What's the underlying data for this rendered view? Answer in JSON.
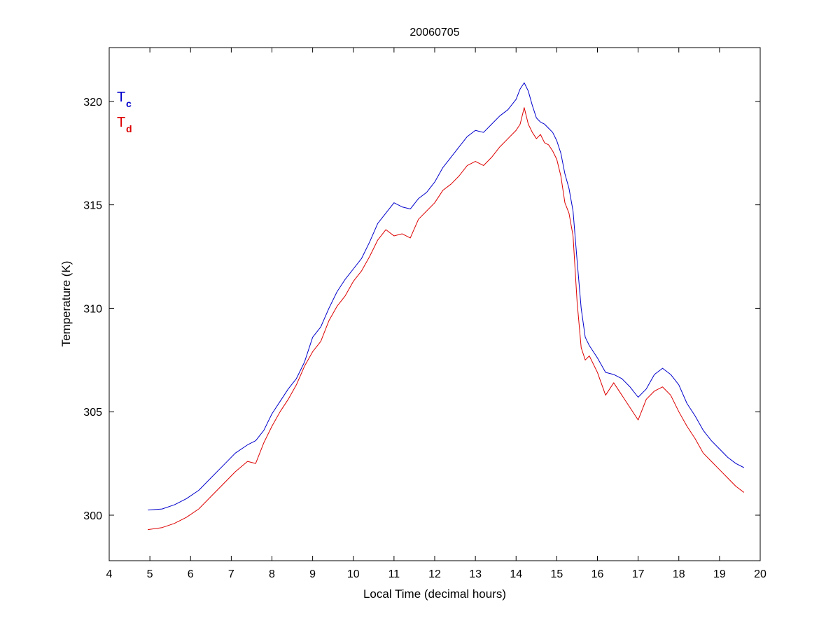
{
  "chart_data": {
    "type": "line",
    "title": "20060705",
    "xlabel": "Local Time (decimal hours)",
    "ylabel": "Temperature (K)",
    "xlim": [
      4,
      20
    ],
    "ylim": [
      297.8,
      322.6
    ],
    "xticks": [
      4,
      5,
      6,
      7,
      8,
      9,
      10,
      11,
      12,
      13,
      14,
      15,
      16,
      17,
      18,
      19,
      20
    ],
    "yticks": [
      300,
      305,
      310,
      315,
      320
    ],
    "grid": false,
    "legend": {
      "placement": "top-left"
    },
    "series": [
      {
        "name": "Tc",
        "label_main": "T",
        "label_sub": "c",
        "color": "#0000cc",
        "x": [
          4.95,
          5.3,
          5.6,
          5.9,
          6.2,
          6.5,
          6.8,
          7.1,
          7.4,
          7.6,
          7.8,
          8.0,
          8.2,
          8.4,
          8.6,
          8.8,
          9.0,
          9.2,
          9.4,
          9.6,
          9.8,
          10.0,
          10.2,
          10.4,
          10.6,
          10.8,
          11.0,
          11.2,
          11.4,
          11.6,
          11.8,
          12.0,
          12.2,
          12.4,
          12.6,
          12.8,
          13.0,
          13.2,
          13.4,
          13.6,
          13.8,
          14.0,
          14.1,
          14.2,
          14.3,
          14.4,
          14.5,
          14.6,
          14.7,
          14.8,
          14.9,
          15.0,
          15.1,
          15.2,
          15.3,
          15.4,
          15.5,
          15.6,
          15.7,
          15.8,
          16.0,
          16.2,
          16.4,
          16.6,
          16.8,
          17.0,
          17.2,
          17.4,
          17.6,
          17.8,
          18.0,
          18.2,
          18.4,
          18.6,
          18.8,
          19.0,
          19.2,
          19.4,
          19.6
        ],
        "values": [
          300.25,
          300.3,
          300.5,
          300.8,
          301.2,
          301.8,
          302.4,
          303.0,
          303.4,
          303.6,
          304.1,
          304.9,
          305.5,
          306.1,
          306.6,
          307.4,
          308.6,
          309.1,
          310.0,
          310.8,
          311.4,
          311.9,
          312.4,
          313.2,
          314.1,
          314.6,
          315.1,
          314.9,
          314.8,
          315.3,
          315.6,
          316.1,
          316.8,
          317.3,
          317.8,
          318.3,
          318.6,
          318.5,
          318.9,
          319.3,
          319.6,
          320.1,
          320.6,
          320.9,
          320.5,
          319.8,
          319.2,
          319.0,
          318.9,
          318.7,
          318.5,
          318.1,
          317.5,
          316.5,
          315.8,
          314.7,
          312.3,
          310.0,
          308.6,
          308.2,
          307.6,
          306.9,
          306.8,
          306.6,
          306.2,
          305.7,
          306.1,
          306.8,
          307.1,
          306.8,
          306.3,
          305.4,
          304.8,
          304.1,
          303.6,
          303.2,
          302.8,
          302.5,
          302.3
        ]
      },
      {
        "name": "Td",
        "label_main": "T",
        "label_sub": "d",
        "color": "#dd0000",
        "x": [
          4.95,
          5.3,
          5.6,
          5.9,
          6.2,
          6.5,
          6.8,
          7.1,
          7.4,
          7.6,
          7.8,
          8.0,
          8.2,
          8.4,
          8.6,
          8.8,
          9.0,
          9.2,
          9.4,
          9.6,
          9.8,
          10.0,
          10.2,
          10.4,
          10.6,
          10.8,
          11.0,
          11.2,
          11.4,
          11.6,
          11.8,
          12.0,
          12.2,
          12.4,
          12.6,
          12.8,
          13.0,
          13.2,
          13.4,
          13.6,
          13.8,
          14.0,
          14.1,
          14.2,
          14.3,
          14.4,
          14.5,
          14.6,
          14.7,
          14.8,
          14.9,
          15.0,
          15.1,
          15.2,
          15.3,
          15.4,
          15.5,
          15.6,
          15.7,
          15.8,
          16.0,
          16.2,
          16.4,
          16.6,
          16.8,
          17.0,
          17.2,
          17.4,
          17.6,
          17.8,
          18.0,
          18.2,
          18.4,
          18.6,
          18.8,
          19.0,
          19.2,
          19.4,
          19.6
        ],
        "values": [
          299.3,
          299.4,
          299.6,
          299.9,
          300.3,
          300.9,
          301.5,
          302.1,
          302.6,
          302.5,
          303.5,
          304.3,
          305.0,
          305.6,
          306.3,
          307.2,
          307.9,
          308.4,
          309.4,
          310.1,
          310.6,
          311.3,
          311.8,
          312.5,
          313.3,
          313.8,
          313.5,
          313.6,
          313.4,
          314.3,
          314.7,
          315.1,
          315.7,
          316.0,
          316.4,
          316.9,
          317.1,
          316.9,
          317.3,
          317.8,
          318.2,
          318.6,
          318.9,
          319.7,
          318.9,
          318.5,
          318.2,
          318.4,
          318.0,
          317.9,
          317.6,
          317.2,
          316.4,
          315.1,
          314.6,
          313.5,
          310.3,
          308.1,
          307.5,
          307.7,
          306.9,
          305.8,
          306.4,
          305.8,
          305.2,
          304.6,
          305.6,
          306.0,
          306.2,
          305.8,
          305.0,
          304.3,
          303.7,
          303.0,
          302.6,
          302.2,
          301.8,
          301.4,
          301.1
        ]
      }
    ]
  }
}
